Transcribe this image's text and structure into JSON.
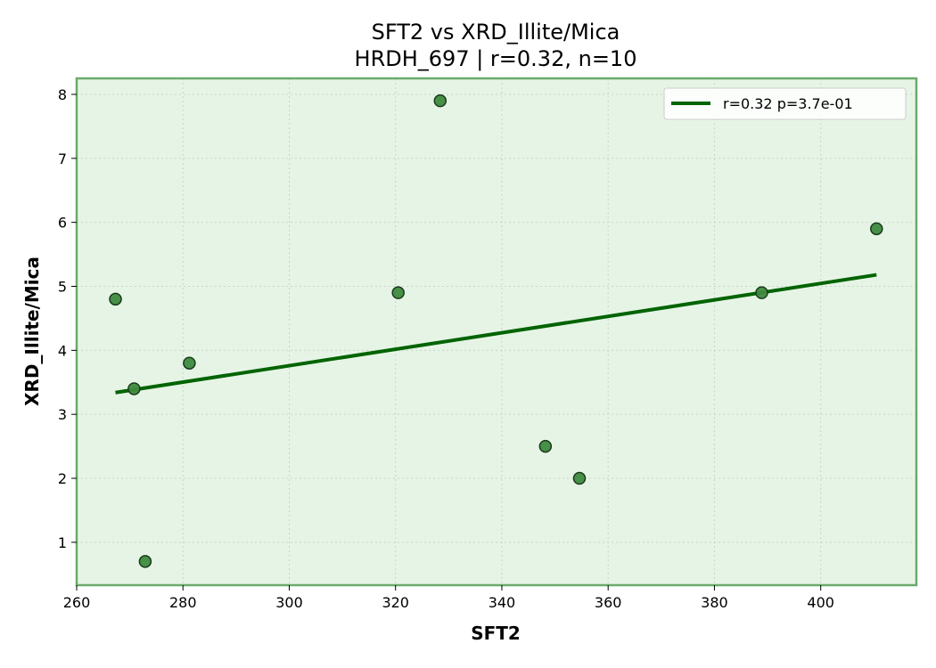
{
  "chart_data": {
    "type": "scatter",
    "title": "SFT2 vs XRD_Illite/Mica",
    "subtitle": "HRDH_697 | r=0.32, n=10",
    "xlabel": "SFT2",
    "ylabel": "XRD_Illite/Mica",
    "xlim": [
      260,
      418
    ],
    "ylim": [
      0.33,
      8.25
    ],
    "x_ticks": [
      260,
      280,
      300,
      320,
      340,
      360,
      380,
      400
    ],
    "y_ticks": [
      1,
      2,
      3,
      4,
      5,
      6,
      7,
      8
    ],
    "grid": true,
    "legend_position": "top-right",
    "points": [
      {
        "x": 267.3,
        "y": 4.8
      },
      {
        "x": 270.8,
        "y": 3.4
      },
      {
        "x": 272.9,
        "y": 0.7
      },
      {
        "x": 281.2,
        "y": 3.8
      },
      {
        "x": 320.5,
        "y": 4.9
      },
      {
        "x": 328.4,
        "y": 7.9
      },
      {
        "x": 348.2,
        "y": 2.5
      },
      {
        "x": 354.6,
        "y": 2.0
      },
      {
        "x": 388.9,
        "y": 4.9
      },
      {
        "x": 410.5,
        "y": 5.9
      }
    ],
    "trendline": {
      "label": "r=0.32  p=3.7e-01",
      "x": [
        267.3,
        410.5
      ],
      "y": [
        3.34,
        5.18
      ]
    },
    "colors": {
      "background": "#e6f4e6",
      "frame": "#6aaa6a",
      "point_fill": "#3e8a3e",
      "point_edge": "#1a3a1a",
      "line": "#006400",
      "grid": "#c8d4c8"
    }
  }
}
